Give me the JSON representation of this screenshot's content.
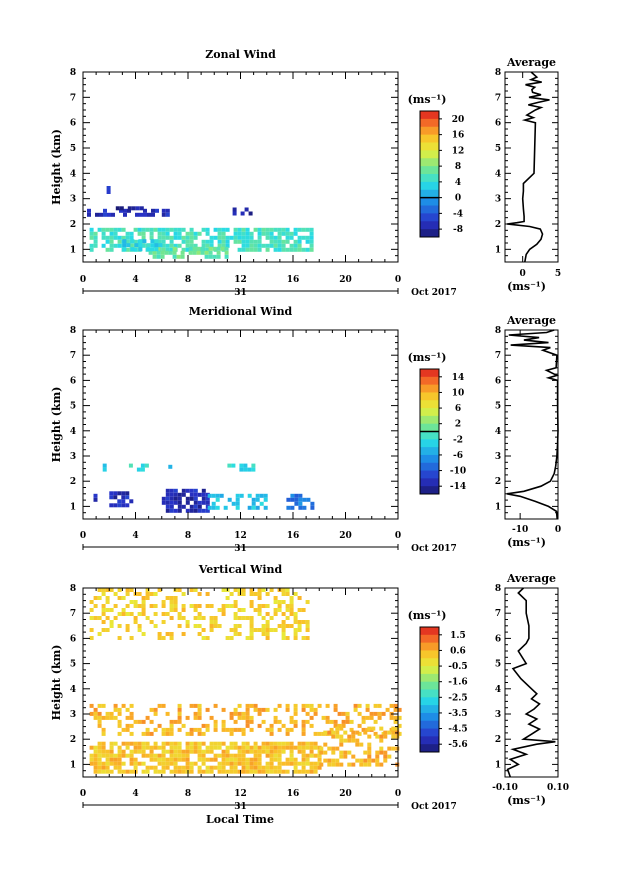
{
  "figure": {
    "xlabel_bottom": "Local Time"
  },
  "chart_data": [
    {
      "type": "heatmap",
      "title": "Zonal Wind",
      "ylabel": "Height (km)",
      "xlabel": "Local Time",
      "x_ticks": [
        "0",
        "4",
        "8",
        "12",
        "16",
        "20",
        "0"
      ],
      "x_range": [
        0,
        24
      ],
      "y_range": [
        0.5,
        8
      ],
      "y_ticks": [
        1,
        2,
        3,
        4,
        5,
        6,
        7,
        8
      ],
      "date_day": "31",
      "date_label": "Oct 2017",
      "colorbar": {
        "unit": "(ms⁻¹)",
        "ticks": [
          "20",
          "16",
          "12",
          "8",
          "4",
          "0",
          "-4",
          "-8"
        ],
        "min": -10,
        "max": 22,
        "zero_line": 0
      },
      "regions": [
        {
          "t0": 0.0,
          "t1": 5.5,
          "h0": 2.35,
          "h1": 2.6,
          "value": -7,
          "density": 0.6
        },
        {
          "t0": 2.5,
          "t1": 5.5,
          "h0": 2.55,
          "h1": 2.7,
          "value": -8,
          "density": 0.5
        },
        {
          "t0": 6.0,
          "t1": 6.6,
          "h0": 2.4,
          "h1": 2.6,
          "value": -7,
          "density": 0.7
        },
        {
          "t0": 11.4,
          "t1": 12.8,
          "h0": 2.45,
          "h1": 2.65,
          "value": -8,
          "density": 0.6
        },
        {
          "t0": 1.8,
          "t1": 2.0,
          "h0": 3.3,
          "h1": 3.5,
          "value": -6,
          "density": 0.9
        },
        {
          "t0": 0.5,
          "t1": 17.5,
          "h0": 1.0,
          "h1": 1.85,
          "value": 5,
          "density": 0.75
        },
        {
          "t0": 5.0,
          "t1": 11.0,
          "h0": 0.75,
          "h1": 1.1,
          "value": 7,
          "density": 0.6
        },
        {
          "t0": 3.0,
          "t1": 6.0,
          "h0": 1.0,
          "h1": 1.4,
          "value": 3,
          "density": 0.5
        }
      ],
      "average_panel": {
        "title": "Average",
        "xlabel": "(ms⁻¹)",
        "x_ticks": [
          "0",
          "5"
        ],
        "x_range": [
          -2.5,
          5
        ],
        "profile": [
          [
            0.5,
            0.3
          ],
          [
            0.8,
            0.5
          ],
          [
            1.0,
            1.0
          ],
          [
            1.2,
            2.0
          ],
          [
            1.4,
            2.6
          ],
          [
            1.6,
            2.8
          ],
          [
            1.8,
            2.5
          ],
          [
            1.9,
            1.0
          ],
          [
            2.0,
            -2.2
          ],
          [
            2.05,
            -0.8
          ],
          [
            2.1,
            0.2
          ],
          [
            2.3,
            0.2
          ],
          [
            2.6,
            0.1
          ],
          [
            3.0,
            0.0
          ],
          [
            3.3,
            0.1
          ],
          [
            3.6,
            0.1
          ],
          [
            4.0,
            1.6
          ],
          [
            5.0,
            1.7
          ],
          [
            6.0,
            1.8
          ],
          [
            6.1,
            0.3
          ],
          [
            6.2,
            1.5
          ],
          [
            6.3,
            0.6
          ],
          [
            6.5,
            1.8
          ],
          [
            6.6,
            2.6
          ],
          [
            6.7,
            0.8
          ],
          [
            6.8,
            2.2
          ],
          [
            6.9,
            3.8
          ],
          [
            7.0,
            0.9
          ],
          [
            7.1,
            2.6
          ],
          [
            7.2,
            1.4
          ],
          [
            7.3,
            1.3
          ],
          [
            7.4,
            1.7
          ],
          [
            7.5,
            0.4
          ],
          [
            7.6,
            2.7
          ],
          [
            7.7,
            1.2
          ],
          [
            7.8,
            2.0
          ],
          [
            8.0,
            1.2
          ]
        ]
      }
    },
    {
      "type": "heatmap",
      "title": "Meridional Wind",
      "ylabel": "Height (km)",
      "xlabel": "Local Time",
      "x_ticks": [
        "0",
        "4",
        "8",
        "12",
        "16",
        "20",
        "0"
      ],
      "x_range": [
        0,
        24
      ],
      "y_range": [
        0.5,
        8
      ],
      "y_ticks": [
        1,
        2,
        3,
        4,
        5,
        6,
        7,
        8
      ],
      "date_day": "31",
      "date_label": "Oct 2017",
      "colorbar": {
        "unit": "(ms⁻¹)",
        "ticks": [
          "14",
          "10",
          "6",
          "2",
          "-2",
          "-6",
          "-10",
          "-14"
        ],
        "min": -16,
        "max": 16,
        "zero_line": 0
      },
      "regions": [
        {
          "t0": 1.5,
          "t1": 1.7,
          "h0": 2.5,
          "h1": 2.7,
          "value": -3,
          "density": 0.9
        },
        {
          "t0": 3.5,
          "t1": 5.0,
          "h0": 2.45,
          "h1": 2.7,
          "value": -2,
          "density": 0.7
        },
        {
          "t0": 6.5,
          "t1": 6.8,
          "h0": 2.5,
          "h1": 2.65,
          "value": -3,
          "density": 0.9
        },
        {
          "t0": 11.0,
          "t1": 13.0,
          "h0": 2.45,
          "h1": 2.7,
          "value": -2,
          "density": 0.6
        },
        {
          "t0": 2.0,
          "t1": 3.8,
          "h0": 1.1,
          "h1": 1.6,
          "value": -13,
          "density": 0.75
        },
        {
          "t0": 6.0,
          "t1": 9.5,
          "h0": 0.9,
          "h1": 1.7,
          "value": -13,
          "density": 0.75
        },
        {
          "t0": 9.5,
          "t1": 14.0,
          "h0": 1.0,
          "h1": 1.5,
          "value": -4,
          "density": 0.45
        },
        {
          "t0": 15.5,
          "t1": 17.5,
          "h0": 1.0,
          "h1": 1.5,
          "value": -8,
          "density": 0.6
        },
        {
          "t0": 0.8,
          "t1": 1.0,
          "h0": 1.3,
          "h1": 1.5,
          "value": -12,
          "density": 0.9
        }
      ],
      "average_panel": {
        "title": "Average",
        "xlabel": "(ms⁻¹)",
        "x_ticks": [
          "-10",
          "0"
        ],
        "x_range": [
          -14,
          0
        ],
        "profile": [
          [
            0.5,
            -0.2
          ],
          [
            0.8,
            -0.4
          ],
          [
            1.0,
            -2.5
          ],
          [
            1.2,
            -6.0
          ],
          [
            1.4,
            -10.0
          ],
          [
            1.5,
            -13.5
          ],
          [
            1.6,
            -9.0
          ],
          [
            1.8,
            -4.5
          ],
          [
            2.0,
            -2.0
          ],
          [
            2.3,
            -1.0
          ],
          [
            2.6,
            -0.6
          ],
          [
            3.0,
            -0.3
          ],
          [
            3.5,
            -0.1
          ],
          [
            4.0,
            0.0
          ],
          [
            5.0,
            -0.1
          ],
          [
            6.0,
            -0.1
          ],
          [
            6.1,
            -2.5
          ],
          [
            6.2,
            -0.3
          ],
          [
            6.4,
            -3.0
          ],
          [
            6.5,
            -0.5
          ],
          [
            7.0,
            -0.3
          ],
          [
            7.2,
            -4.0
          ],
          [
            7.3,
            -2.0
          ],
          [
            7.4,
            -12.5
          ],
          [
            7.5,
            -2.5
          ],
          [
            7.6,
            -9.0
          ],
          [
            7.7,
            -5.0
          ],
          [
            7.8,
            -13.0
          ],
          [
            7.9,
            -3.0
          ],
          [
            8.0,
            -1.0
          ]
        ]
      }
    },
    {
      "type": "heatmap",
      "title": "Vertical Wind",
      "ylabel": "Height (km)",
      "xlabel": "Local Time",
      "x_ticks": [
        "0",
        "4",
        "8",
        "12",
        "16",
        "20",
        "0"
      ],
      "x_range": [
        0,
        24
      ],
      "y_range": [
        0.5,
        8
      ],
      "y_ticks": [
        1,
        2,
        3,
        4,
        5,
        6,
        7,
        8
      ],
      "date_day": "31",
      "date_label": "Oct 2017",
      "colorbar": {
        "unit": "(ms⁻¹)",
        "ticks": [
          "1.5",
          "0.6",
          "-0.5",
          "-1.6",
          "-2.5",
          "-3.5",
          "-4.5",
          "-5.6"
        ],
        "min": -6.1,
        "max": 2.0,
        "zero_line": null
      },
      "regions": [
        {
          "t0": 0.5,
          "t1": 17.0,
          "h0": 6.0,
          "h1": 8.0,
          "value": 0.0,
          "density": 0.35
        },
        {
          "t0": 0.5,
          "t1": 24.0,
          "h0": 2.2,
          "h1": 3.4,
          "value": 0.4,
          "density": 0.4
        },
        {
          "t0": 0.5,
          "t1": 18.0,
          "h0": 0.7,
          "h1": 1.9,
          "value": 0.2,
          "density": 0.8
        },
        {
          "t0": 18.0,
          "t1": 24.0,
          "h0": 1.0,
          "h1": 2.5,
          "value": 0.4,
          "density": 0.45
        }
      ],
      "average_panel": {
        "title": "Average",
        "xlabel": "(ms⁻¹)",
        "x_ticks": [
          "-0.10",
          "0.10"
        ],
        "x_range": [
          -0.1,
          0.1
        ],
        "profile": [
          [
            0.5,
            -0.08
          ],
          [
            0.8,
            -0.09
          ],
          [
            1.0,
            -0.05
          ],
          [
            1.2,
            -0.08
          ],
          [
            1.4,
            -0.02
          ],
          [
            1.6,
            -0.07
          ],
          [
            1.8,
            0.02
          ],
          [
            1.9,
            0.09
          ],
          [
            2.0,
            -0.03
          ],
          [
            2.2,
            0.0
          ],
          [
            2.4,
            0.03
          ],
          [
            2.6,
            -0.01
          ],
          [
            2.8,
            0.02
          ],
          [
            3.0,
            -0.02
          ],
          [
            3.2,
            0.01
          ],
          [
            3.4,
            0.03
          ],
          [
            3.6,
            0.0
          ],
          [
            3.8,
            0.02
          ],
          [
            4.0,
            0.0
          ],
          [
            4.4,
            -0.04
          ],
          [
            4.8,
            -0.07
          ],
          [
            5.0,
            -0.02
          ],
          [
            5.5,
            -0.05
          ],
          [
            5.8,
            -0.02
          ],
          [
            6.0,
            -0.01
          ],
          [
            6.5,
            -0.01
          ],
          [
            7.0,
            -0.02
          ],
          [
            7.5,
            -0.02
          ],
          [
            7.8,
            -0.05
          ],
          [
            8.0,
            -0.03
          ]
        ]
      }
    }
  ]
}
